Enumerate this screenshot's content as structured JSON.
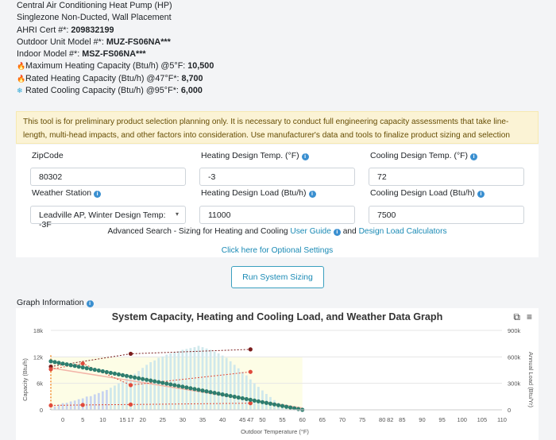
{
  "product": {
    "line1": "Central Air Conditioning Heat Pump (HP)",
    "line2": "Singlezone Non-Ducted, Wall Placement",
    "ahri_label": "AHRI Cert #*: ",
    "ahri_value": "209832199",
    "outdoor_label": "Outdoor Unit Model #*: ",
    "outdoor_value": "MUZ-FS06NA***",
    "indoor_label": "Indoor Model #*: ",
    "indoor_value": "MSZ-FS06NA***",
    "max_heat_label": "Maximum Heating Capacity (Btu/h) @5°F: ",
    "max_heat_value": "10,500",
    "rated_heat_label": "Rated Heating Capacity (Btu/h) @47°F*: ",
    "rated_heat_value": "8,700",
    "rated_cool_label": "Rated Cooling Capacity (Btu/h) @95°F*: ",
    "rated_cool_value": "6,000"
  },
  "warning": "This tool is for preliminary product selection planning only. It is necessary to conduct full engineering capacity assessments that take line-length, multi-head impacts, and other factors into consideration. Use manufacturer's data and tools to finalize product sizing and selection determinations.",
  "form": {
    "zip_label": "ZipCode",
    "zip_value": "80302",
    "heat_temp_label": "Heating Design Temp. (°F)",
    "heat_temp_value": "-3",
    "cool_temp_label": "Cooling Design Temp. (°F)",
    "cool_temp_value": "72",
    "station_label": "Weather Station",
    "station_value": "Leadville AP, Winter Design Temp: -3F",
    "heat_load_label": "Heating Design Load (Btu/h)",
    "heat_load_value": "11000",
    "cool_load_label": "Cooling Design Load (Btu/h)",
    "cool_load_value": "7500",
    "advanced_text": "Advanced Search - Sizing for Heating and Cooling ",
    "user_guide": "User Guide",
    "and_text": " and ",
    "design_load_link": "Design Load Calculators",
    "optional_link": "Click here for Optional Settings",
    "run_button": "Run System Sizing"
  },
  "graph_info_label": "Graph Information",
  "chart_data": {
    "type": "line",
    "title": "System Capacity, Heating and Cooling Load, and Weather Data Graph",
    "xlabel": "Outdoor Temperature (°F)",
    "ylabel": "Capacity (Btu/h)",
    "y2label": "Annual Load (Btu/Yr)",
    "x_ticks": [
      "0",
      "5",
      "10",
      "15",
      "17",
      "20",
      "25",
      "30",
      "35",
      "40",
      "45",
      "47",
      "50",
      "55",
      "60",
      "65",
      "70",
      "75",
      "80",
      "82",
      "85",
      "90",
      "95",
      "100",
      "105",
      "110"
    ],
    "x_tick_values": [
      0,
      5,
      10,
      15,
      17,
      20,
      25,
      30,
      35,
      40,
      45,
      47,
      50,
      55,
      60,
      65,
      70,
      75,
      80,
      82,
      85,
      90,
      95,
      100,
      105,
      110
    ],
    "y_ticks": [
      "0",
      "6k",
      "12k",
      "18k"
    ],
    "y_tick_values": [
      0,
      6000,
      12000,
      18000
    ],
    "y2_ticks": [
      "0",
      "300k",
      "600k",
      "900k"
    ],
    "xlim": [
      -3,
      110
    ],
    "ylim": [
      0,
      18000
    ],
    "y2lim": [
      0,
      900000
    ],
    "series": [
      {
        "name": "",
        "color": "#7a1c1c",
        "style": "dotted",
        "x": [
          -3,
          17,
          47
        ],
        "y": [
          9800,
          12700,
          13700
        ]
      },
      {
        "name": "",
        "color": "#e04a3c",
        "style": "dotted",
        "x": [
          -3,
          5,
          17,
          47
        ],
        "y": [
          9200,
          10500,
          5600,
          8600
        ]
      },
      {
        "name": "",
        "color": "#e04a3c",
        "style": "dotted",
        "x": [
          -3,
          5,
          17,
          47
        ],
        "y": [
          1000,
          1100,
          1200,
          1500
        ]
      },
      {
        "name": "",
        "color": "#2e7d6e",
        "style": "markers",
        "x": [
          -3,
          60
        ],
        "y": [
          11000,
          0
        ]
      }
    ],
    "cooling_load_x": [
      -3,
      60
    ],
    "cooling_load_y": [
      9500,
      400
    ],
    "histogram_x": [
      -3,
      -2,
      -1,
      0,
      1,
      2,
      3,
      4,
      5,
      6,
      7,
      8,
      9,
      10,
      11,
      12,
      13,
      14,
      15,
      16,
      17,
      18,
      19,
      20,
      21,
      22,
      23,
      24,
      25,
      26,
      27,
      28,
      29,
      30,
      31,
      32,
      33,
      34,
      35,
      36,
      37,
      38,
      39,
      40,
      41,
      42,
      43,
      44,
      45,
      46,
      47,
      48,
      49,
      50,
      51,
      52,
      53,
      54,
      55,
      56,
      57,
      58,
      59,
      60
    ],
    "histogram_y": [
      300,
      800,
      1200,
      1500,
      1600,
      1900,
      2100,
      2400,
      2600,
      3000,
      3100,
      3500,
      3800,
      4200,
      4500,
      5000,
      5500,
      6000,
      6500,
      7200,
      7600,
      8200,
      8800,
      9500,
      10200,
      10800,
      11200,
      11800,
      12100,
      12500,
      12800,
      13000,
      13300,
      13600,
      13800,
      14000,
      14200,
      14500,
      14200,
      13900,
      13600,
      13200,
      12800,
      12300,
      11800,
      11000,
      10200,
      9400,
      8600,
      7800,
      6900,
      6000,
      5200,
      4400,
      3600,
      2900,
      2200,
      1600,
      1100,
      700,
      400,
      250,
      120,
      50
    ],
    "shaded_region_x": [
      -3,
      60
    ],
    "design_temp_x": -3
  }
}
